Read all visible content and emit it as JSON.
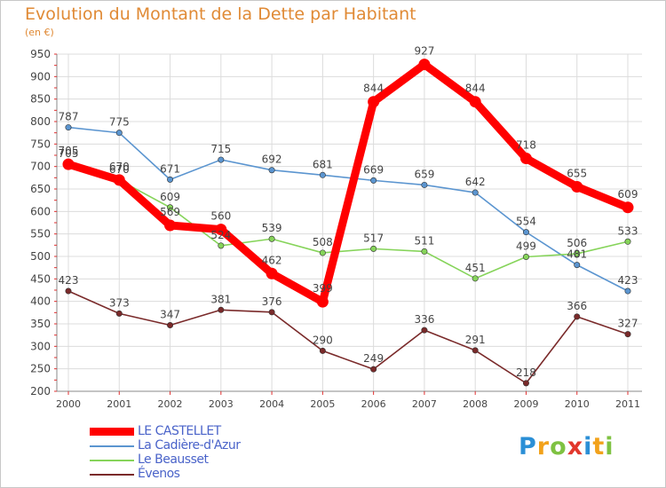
{
  "title": "Evolution du Montant de la Dette par Habitant",
  "subtitle": "(en €)",
  "logo": {
    "text": "Proxiti",
    "letters": [
      {
        "ch": "P",
        "color": "#2b8fd6"
      },
      {
        "ch": "r",
        "color": "#f2a21b"
      },
      {
        "ch": "o",
        "color": "#7fc242"
      },
      {
        "ch": "x",
        "color": "#e2382d"
      },
      {
        "ch": "i",
        "color": "#2b8fd6"
      },
      {
        "ch": "t",
        "color": "#f2a21b"
      },
      {
        "ch": "i",
        "color": "#7fc242"
      }
    ]
  },
  "chart_data": {
    "type": "line",
    "title": "Evolution du Montant de la Dette par Habitant",
    "subtitle": "(en €)",
    "xlabel": "",
    "ylabel": "",
    "x": [
      "2000",
      "2001",
      "2002",
      "2003",
      "2004",
      "2005",
      "2006",
      "2007",
      "2008",
      "2009",
      "2010",
      "2011"
    ],
    "ylim": [
      200,
      950
    ],
    "yticks": [
      200,
      250,
      300,
      350,
      400,
      450,
      500,
      550,
      600,
      650,
      700,
      750,
      800,
      850,
      900,
      950
    ],
    "grid": true,
    "legend_position": "bottom-left",
    "series": [
      {
        "name": "LE CASTELLET",
        "color": "#ff0000",
        "emphasis": true,
        "values": [
          705,
          670,
          569,
          560,
          462,
          399,
          844,
          927,
          844,
          718,
          655,
          609
        ]
      },
      {
        "name": "La Cadière-d'Azur",
        "color": "#5b95d0",
        "emphasis": false,
        "values": [
          787,
          775,
          671,
          715,
          692,
          681,
          669,
          659,
          642,
          554,
          481,
          423
        ]
      },
      {
        "name": "Le Beausset",
        "color": "#86d45a",
        "emphasis": false,
        "values": [
          705,
          670,
          609,
          524,
          539,
          508,
          517,
          511,
          451,
          499,
          506,
          533
        ]
      },
      {
        "name": "Évenos",
        "color": "#7a2a2a",
        "emphasis": false,
        "values": [
          423,
          373,
          347,
          381,
          376,
          290,
          249,
          336,
          291,
          218,
          366,
          327
        ]
      }
    ]
  }
}
